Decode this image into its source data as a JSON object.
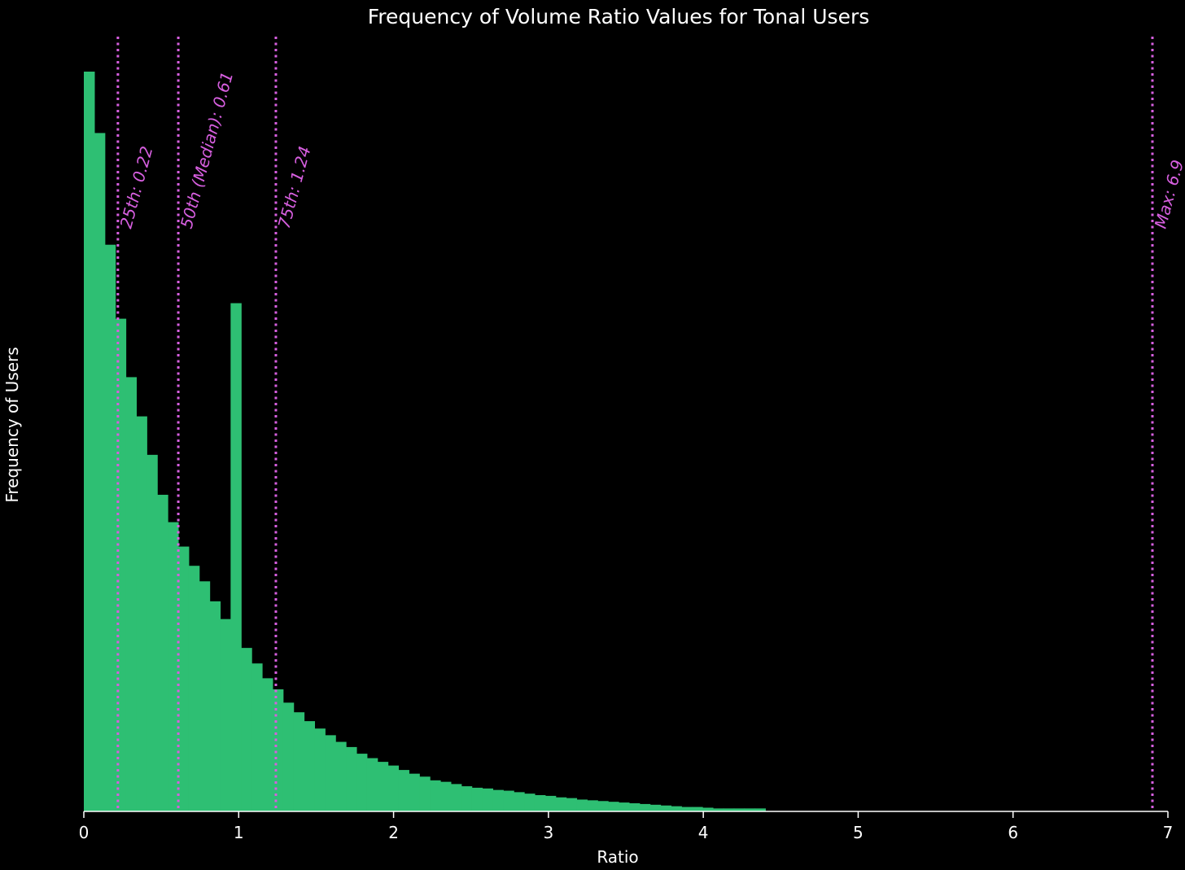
{
  "chart_data": {
    "type": "histogram",
    "title": "Frequency of Volume Ratio Values for Tonal Users",
    "xlabel": "Ratio",
    "ylabel": "Frequency of Users",
    "xlim": [
      0,
      7
    ],
    "x_ticks": [
      "0",
      "1",
      "2",
      "3",
      "4",
      "5",
      "6",
      "7"
    ],
    "y_ticks_shown": false,
    "grid": false,
    "bar_color": "#2ebf73",
    "line_color": "#d75fe0",
    "background": "#000000",
    "bin_width": 0.0677,
    "bin_start": 0,
    "values": [
      1000,
      917,
      766,
      666,
      587,
      534,
      482,
      428,
      391,
      358,
      332,
      311,
      284,
      260,
      687,
      221,
      200,
      180,
      165,
      147,
      134,
      122,
      112,
      103,
      94,
      87,
      78,
      72,
      67,
      62,
      56,
      51,
      47,
      42,
      40,
      37,
      34,
      32,
      31,
      29,
      28,
      26,
      24,
      22,
      21,
      19,
      18,
      16,
      15,
      14,
      13,
      12,
      11,
      10,
      9,
      8,
      7,
      6,
      6,
      5,
      4,
      4,
      4,
      4,
      4
    ],
    "annotations": [
      {
        "x": 0.22,
        "label": "25th: 0.22"
      },
      {
        "x": 0.61,
        "label": "50th (Median): 0.61"
      },
      {
        "x": 1.24,
        "label": "75th: 1.24"
      },
      {
        "x": 6.9,
        "label": "Max: 6.9"
      }
    ]
  }
}
